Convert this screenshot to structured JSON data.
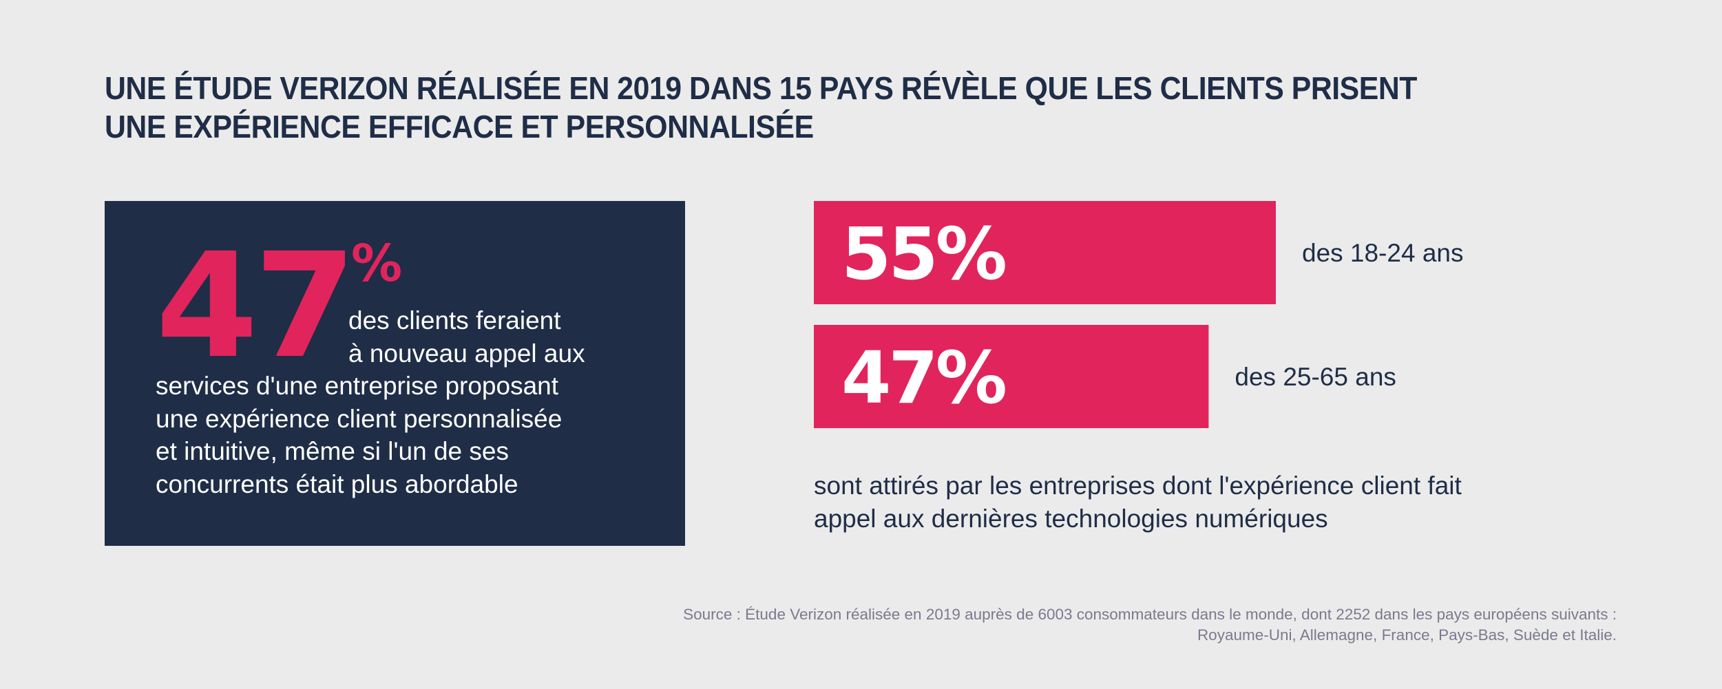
{
  "title": {
    "lines": [
      "UNE ÉTUDE VERIZON RÉALISÉE EN 2019 DANS 15 PAYS RÉVÈLE QUE LES CLIENTS PRISENT",
      "UNE EXPÉRIENCE EFFICACE ET PERSONNALISÉE"
    ]
  },
  "colors": {
    "background": "#ebebeb",
    "navy": "#1f2d47",
    "pink": "#e2245c",
    "white": "#ffffff",
    "source_gray": "#7a7a8e"
  },
  "highlight_stat": {
    "number": "47",
    "percent_sign": "%",
    "text_lines": [
      "des clients feraient",
      "à nouveau appel aux",
      "services d'une entreprise proposant",
      "une expérience client personnalisée",
      "et intuitive, même si l'un de ses",
      "concurrents était plus abordable"
    ]
  },
  "chart_data": {
    "type": "bar",
    "orientation": "horizontal",
    "title": "",
    "categories": [
      "des 18-24 ans",
      "des 25-65 ans"
    ],
    "values": [
      55,
      47
    ],
    "value_labels": [
      "55%",
      "47%"
    ],
    "unit": "%",
    "xlabel": "",
    "ylabel": "",
    "grid": false,
    "legend": "none",
    "description_lines": [
      "sont attirés par les entreprises dont l'expérience client fait",
      "appel aux dernières technologies numériques"
    ]
  },
  "source": {
    "lines": [
      "Source : Étude Verizon réalisée en 2019 auprès de 6003 consommateurs dans le monde, dont 2252 dans les pays européens suivants :",
      "Royaume-Uni, Allemagne, France, Pays-Bas, Suède et Italie."
    ]
  }
}
